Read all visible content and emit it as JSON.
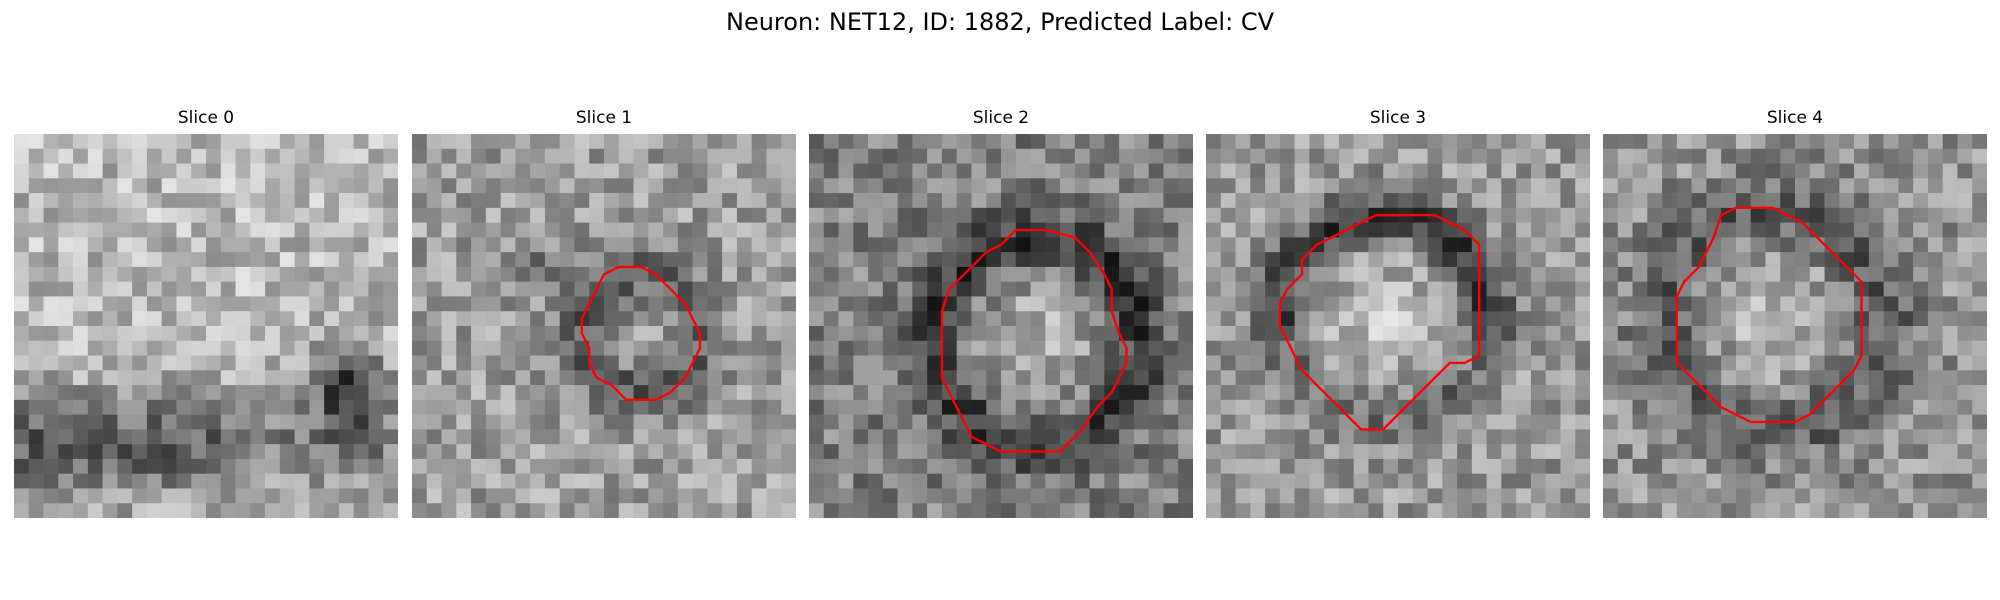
{
  "figure": {
    "title": "Neuron: NET12, ID: 1882, Predicted Label: CV"
  },
  "panels": [
    {
      "title": "Slice 0",
      "contour": []
    },
    {
      "title": "Slice 1",
      "contour": [
        [
          12.5,
          10.5
        ],
        [
          12.0,
          11.5
        ],
        [
          11.5,
          12.5
        ],
        [
          11.5,
          13.5
        ],
        [
          12.0,
          14.5
        ],
        [
          12.0,
          15.5
        ],
        [
          12.5,
          16.5
        ],
        [
          13.5,
          17.0
        ],
        [
          14.5,
          18.0
        ],
        [
          16.5,
          18.0
        ],
        [
          17.5,
          17.5
        ],
        [
          18.5,
          16.5
        ],
        [
          19.0,
          15.5
        ],
        [
          19.5,
          14.5
        ],
        [
          19.5,
          13.5
        ],
        [
          19.0,
          12.5
        ],
        [
          18.5,
          11.5
        ],
        [
          17.5,
          10.5
        ],
        [
          16.5,
          9.5
        ],
        [
          15.5,
          9.0
        ],
        [
          14.0,
          9.0
        ],
        [
          13.0,
          9.5
        ]
      ]
    },
    {
      "title": "Slice 2",
      "contour": [
        [
          11.5,
          8.5
        ],
        [
          10.5,
          9.5
        ],
        [
          9.5,
          10.5
        ],
        [
          9.0,
          12.0
        ],
        [
          9.0,
          14.5
        ],
        [
          9.0,
          16.5
        ],
        [
          9.5,
          17.5
        ],
        [
          10.0,
          18.5
        ],
        [
          10.5,
          19.5
        ],
        [
          11.0,
          20.5
        ],
        [
          12.0,
          21.0
        ],
        [
          13.0,
          21.5
        ],
        [
          15.0,
          21.5
        ],
        [
          17.0,
          21.5
        ],
        [
          18.5,
          20.0
        ],
        [
          19.5,
          18.5
        ],
        [
          20.5,
          17.5
        ],
        [
          21.0,
          16.5
        ],
        [
          21.5,
          15.5
        ],
        [
          21.5,
          14.5
        ],
        [
          21.0,
          13.5
        ],
        [
          20.5,
          12.0
        ],
        [
          20.5,
          10.5
        ],
        [
          20.0,
          9.5
        ],
        [
          19.0,
          8.0
        ],
        [
          18.0,
          7.0
        ],
        [
          16.0,
          6.5
        ],
        [
          14.0,
          6.5
        ],
        [
          13.0,
          7.5
        ],
        [
          12.0,
          8.0
        ]
      ]
    },
    {
      "title": "Slice 3",
      "contour": [
        [
          6.5,
          8.5
        ],
        [
          6.5,
          9.5
        ],
        [
          5.5,
          10.5
        ],
        [
          5.0,
          11.5
        ],
        [
          5.0,
          13.0
        ],
        [
          5.5,
          14.0
        ],
        [
          6.0,
          15.0
        ],
        [
          6.5,
          16.0
        ],
        [
          7.5,
          17.0
        ],
        [
          8.5,
          18.0
        ],
        [
          9.5,
          19.0
        ],
        [
          10.5,
          20.0
        ],
        [
          12.0,
          20.0
        ],
        [
          13.0,
          19.0
        ],
        [
          14.0,
          18.0
        ],
        [
          14.5,
          17.5
        ],
        [
          15.5,
          16.5
        ],
        [
          16.5,
          15.5
        ],
        [
          17.5,
          15.5
        ],
        [
          18.5,
          15.0
        ],
        [
          18.5,
          13.0
        ],
        [
          18.5,
          11.0
        ],
        [
          18.5,
          9.0
        ],
        [
          18.5,
          7.5
        ],
        [
          17.5,
          6.5
        ],
        [
          16.5,
          6.0
        ],
        [
          15.5,
          5.5
        ],
        [
          14.5,
          5.5
        ],
        [
          13.0,
          5.5
        ],
        [
          11.5,
          5.5
        ],
        [
          10.5,
          6.0
        ],
        [
          9.5,
          6.5
        ],
        [
          8.5,
          7.0
        ],
        [
          7.5,
          7.5
        ]
      ]
    },
    {
      "title": "Slice 4",
      "contour": [
        [
          7.5,
          7.0
        ],
        [
          7.0,
          8.0
        ],
        [
          6.5,
          9.0
        ],
        [
          5.5,
          10.0
        ],
        [
          5.0,
          11.0
        ],
        [
          5.0,
          12.5
        ],
        [
          5.0,
          14.0
        ],
        [
          5.0,
          15.5
        ],
        [
          6.0,
          16.5
        ],
        [
          7.0,
          17.5
        ],
        [
          8.0,
          18.5
        ],
        [
          9.0,
          19.0
        ],
        [
          10.0,
          19.5
        ],
        [
          12.0,
          19.5
        ],
        [
          13.0,
          19.5
        ],
        [
          14.0,
          19.0
        ],
        [
          15.0,
          18.0
        ],
        [
          16.0,
          17.0
        ],
        [
          17.0,
          16.0
        ],
        [
          17.5,
          15.0
        ],
        [
          17.5,
          13.0
        ],
        [
          17.5,
          11.0
        ],
        [
          17.5,
          10.0
        ],
        [
          16.5,
          9.0
        ],
        [
          15.5,
          8.0
        ],
        [
          14.5,
          7.0
        ],
        [
          13.5,
          6.0
        ],
        [
          12.5,
          5.5
        ],
        [
          11.5,
          5.0
        ],
        [
          10.5,
          5.0
        ],
        [
          9.0,
          5.0
        ],
        [
          8.0,
          5.5
        ]
      ]
    }
  ]
}
